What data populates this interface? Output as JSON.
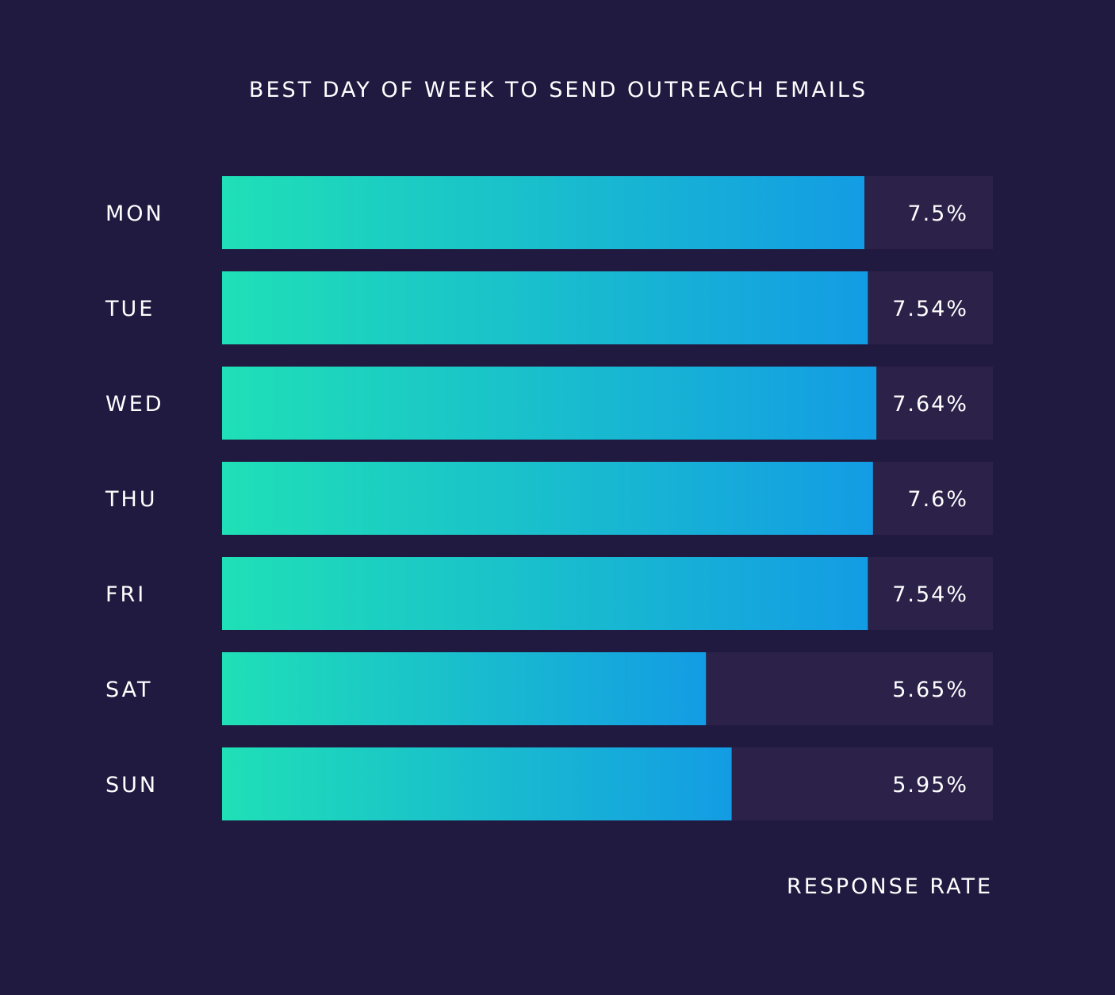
{
  "colors": {
    "background": "#211a40",
    "track": "#2b2149",
    "bar_start": "#1fe0b6",
    "bar_end": "#139ce4",
    "text": "#ffffff"
  },
  "chart_data": {
    "type": "bar",
    "orientation": "horizontal",
    "title": "BEST DAY OF WEEK TO SEND OUTREACH EMAILS",
    "xlabel": "RESPONSE RATE",
    "ylabel": "",
    "categories": [
      "MON",
      "TUE",
      "WED",
      "THU",
      "FRI",
      "SAT",
      "SUN"
    ],
    "values": [
      7.5,
      7.54,
      7.64,
      7.6,
      7.54,
      5.65,
      5.95
    ],
    "value_labels": [
      "7.5%",
      "7.54%",
      "7.64%",
      "7.6%",
      "7.54%",
      "5.65%",
      "5.95%"
    ],
    "xlim": [
      0,
      9
    ],
    "grid": false,
    "legend": "none"
  }
}
